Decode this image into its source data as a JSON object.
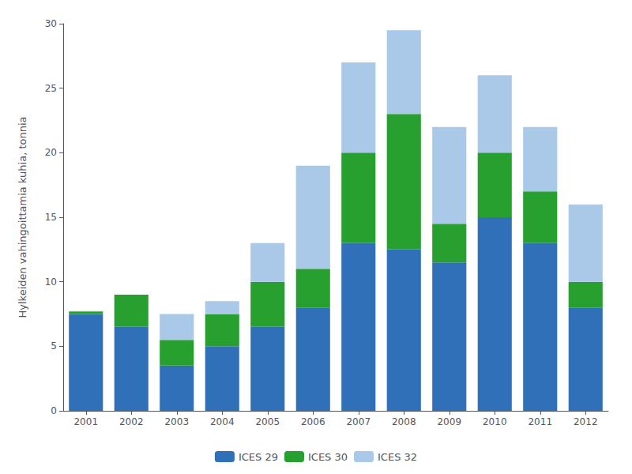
{
  "chart_data": {
    "type": "bar",
    "stacked": true,
    "ylabel": "Hylkeiden vahingoittamia kuhia, tonnia",
    "categories": [
      "2001",
      "2002",
      "2003",
      "2004",
      "2005",
      "2006",
      "2007",
      "2008",
      "2009",
      "2010",
      "2011",
      "2012"
    ],
    "series": [
      {
        "name": "ICES 29",
        "color": "#3070b8",
        "values": [
          7.5,
          6.5,
          3.5,
          5.0,
          6.5,
          8.0,
          13.0,
          12.5,
          11.5,
          15.0,
          13.0,
          8.0
        ]
      },
      {
        "name": "ICES 30",
        "color": "#28a030",
        "values": [
          0.2,
          2.5,
          2.0,
          2.5,
          3.5,
          3.0,
          7.0,
          10.5,
          3.0,
          5.0,
          4.0,
          2.0
        ]
      },
      {
        "name": "ICES 32",
        "color": "#aac8e8",
        "values": [
          0.0,
          0.0,
          2.0,
          1.0,
          3.0,
          8.0,
          7.0,
          6.5,
          7.5,
          6.0,
          5.0,
          6.0
        ]
      }
    ],
    "ylim": [
      0,
      30
    ],
    "yticks": [
      0,
      5,
      10,
      15,
      20,
      25,
      30
    ],
    "grid": false,
    "legend": "bottom"
  }
}
